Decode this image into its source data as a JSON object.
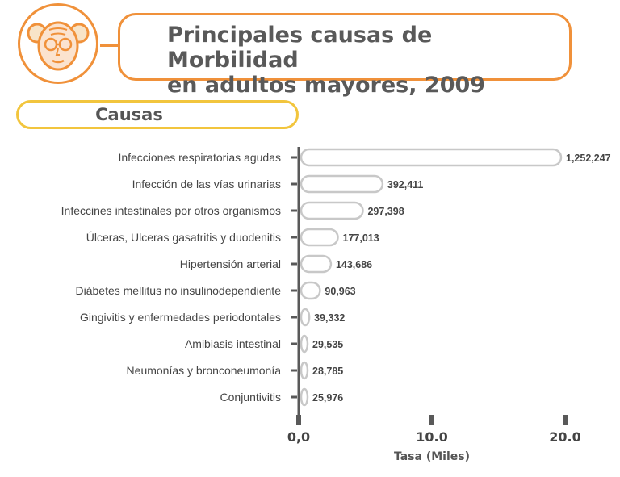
{
  "header": {
    "title_line1": "Principales causas de Morbilidad",
    "title_line2": "en adultos mayores, 2009",
    "avatar_icon": "elderly-person-icon"
  },
  "section": {
    "label": "Causas"
  },
  "colors": {
    "accent_orange": "#f0913a",
    "accent_yellow": "#f2c53d",
    "axis": "#595959",
    "bar_stroke": "#c8c8c8"
  },
  "chart_data": {
    "type": "bar",
    "orientation": "horizontal",
    "categories": [
      "Infecciones respiratorias agudas",
      "Infección de las vías urinarias",
      "Infeccines intestinales por otros organismos",
      "Úlceras, Ulceras gasatritis y duodenitis",
      "Hipertensión arterial",
      "Diábetes mellitus no insulinodependiente",
      "Gingivitis y enfermedades periodontales",
      "Amibiasis intestinal",
      "Neumonías y bronconeumonía",
      "Conjuntivitis"
    ],
    "values": [
      1252247,
      392411,
      297398,
      177013,
      143686,
      90963,
      39332,
      29535,
      28785,
      25976
    ],
    "value_labels": [
      "1,252,247",
      "392,411",
      "297,398",
      "177,013",
      "143,686",
      "90,963",
      "39,332",
      "29,535",
      "28,785",
      "25,976"
    ],
    "xlabel": "Tasa (Miles)",
    "x_ticks": [
      0,
      10,
      20
    ],
    "x_tick_labels": [
      "0,0",
      "10.0",
      "20.0"
    ],
    "xlim": [
      0,
      20
    ],
    "grid": false,
    "legend": "none"
  }
}
